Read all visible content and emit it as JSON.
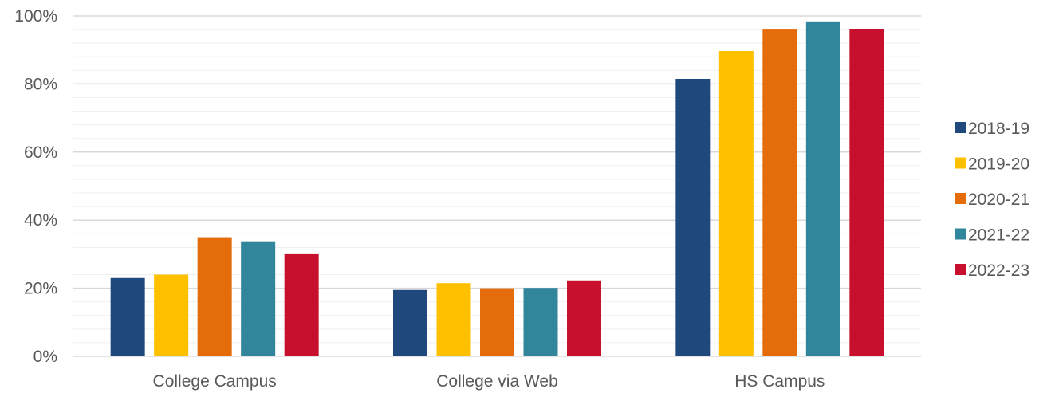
{
  "chart_data": {
    "type": "bar",
    "categories": [
      "College Campus",
      "College via Web",
      "HS Campus"
    ],
    "series": [
      {
        "name": "2018-19",
        "color": "#1f497d",
        "values": [
          23,
          19.5,
          81.5
        ]
      },
      {
        "name": "2019-20",
        "color": "#ffc000",
        "values": [
          24,
          21.5,
          89.7
        ]
      },
      {
        "name": "2020-21",
        "color": "#e46c0a",
        "values": [
          35,
          20,
          96
        ]
      },
      {
        "name": "2021-22",
        "color": "#31869b",
        "values": [
          33.8,
          20.1,
          98.4
        ]
      },
      {
        "name": "2022-23",
        "color": "#c8102e",
        "values": [
          30,
          22.3,
          96.2
        ]
      }
    ],
    "yticks": [
      "0%",
      "20%",
      "40%",
      "60%",
      "80%",
      "100%"
    ],
    "ylim": [
      0,
      100
    ],
    "grid": true,
    "legend": "right"
  }
}
